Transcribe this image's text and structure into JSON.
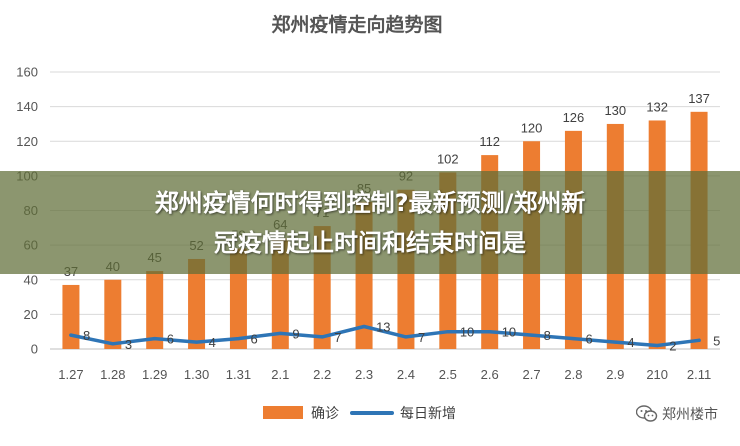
{
  "chart_data": {
    "type": "bar",
    "title": "郑州疫情走向趋势图",
    "categories": [
      "1.27",
      "1.28",
      "1.29",
      "1.30",
      "1.31",
      "2.1",
      "2.2",
      "2.3",
      "2.4",
      "2.5",
      "2.6",
      "2.7",
      "2.8",
      "2.9",
      "210",
      "2.11"
    ],
    "ylim": [
      0,
      160
    ],
    "yticks": [
      0,
      20,
      40,
      60,
      80,
      100,
      120,
      140,
      160
    ],
    "series": [
      {
        "name": "确诊",
        "type": "bar",
        "color": "#ED7D31",
        "values": [
          37,
          40,
          45,
          52,
          58,
          64,
          71,
          85,
          92,
          102,
          112,
          120,
          126,
          130,
          132,
          137
        ]
      },
      {
        "name": "每日新增",
        "type": "line",
        "color": "#2E75B6",
        "values": [
          8,
          3,
          6,
          4,
          6,
          9,
          7,
          13,
          7,
          10,
          10,
          8,
          6,
          4,
          2,
          5
        ]
      }
    ],
    "grid": true,
    "legend": "bottom"
  },
  "overlay": {
    "line1": "郑州疫情何时得到控制?最新预测/郑州新",
    "line2": "冠疫情起止时间和结束时间是"
  },
  "watermark": {
    "text": "郑州楼市",
    "icon": "wechat-icon"
  }
}
